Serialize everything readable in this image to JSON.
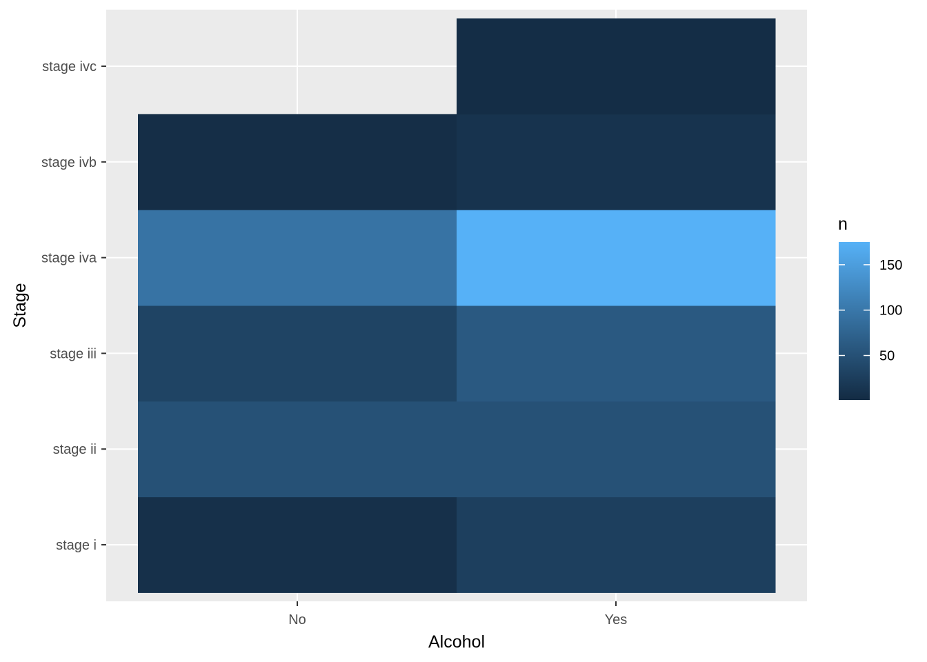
{
  "chart_data": {
    "type": "heatmap",
    "xlabel": "Alcohol",
    "ylabel": "Stage",
    "x_categories": [
      "No",
      "Yes"
    ],
    "y_categories": [
      "stage i",
      "stage ii",
      "stage iii",
      "stage iva",
      "stage ivb",
      "stage ivc"
    ],
    "cells": [
      {
        "x": "No",
        "y": "stage i",
        "n": 8
      },
      {
        "x": "No",
        "y": "stage ii",
        "n": 50
      },
      {
        "x": "No",
        "y": "stage iii",
        "n": 33
      },
      {
        "x": "No",
        "y": "stage iva",
        "n": 95
      },
      {
        "x": "No",
        "y": "stage ivb",
        "n": 5
      },
      {
        "x": "Yes",
        "y": "stage i",
        "n": 27
      },
      {
        "x": "Yes",
        "y": "stage ii",
        "n": 50
      },
      {
        "x": "Yes",
        "y": "stage iii",
        "n": 61
      },
      {
        "x": "Yes",
        "y": "stage iva",
        "n": 175
      },
      {
        "x": "Yes",
        "y": "stage ivb",
        "n": 12
      },
      {
        "x": "Yes",
        "y": "stage ivc",
        "n": 4
      }
    ],
    "legend": {
      "title": "n",
      "ticks": [
        50,
        100,
        150
      ],
      "range": [
        1,
        175
      ],
      "low_color": "#132B43",
      "high_color": "#56B1F7",
      "placement": "right"
    },
    "panel_background": "#EBEBEB",
    "grid": true
  }
}
